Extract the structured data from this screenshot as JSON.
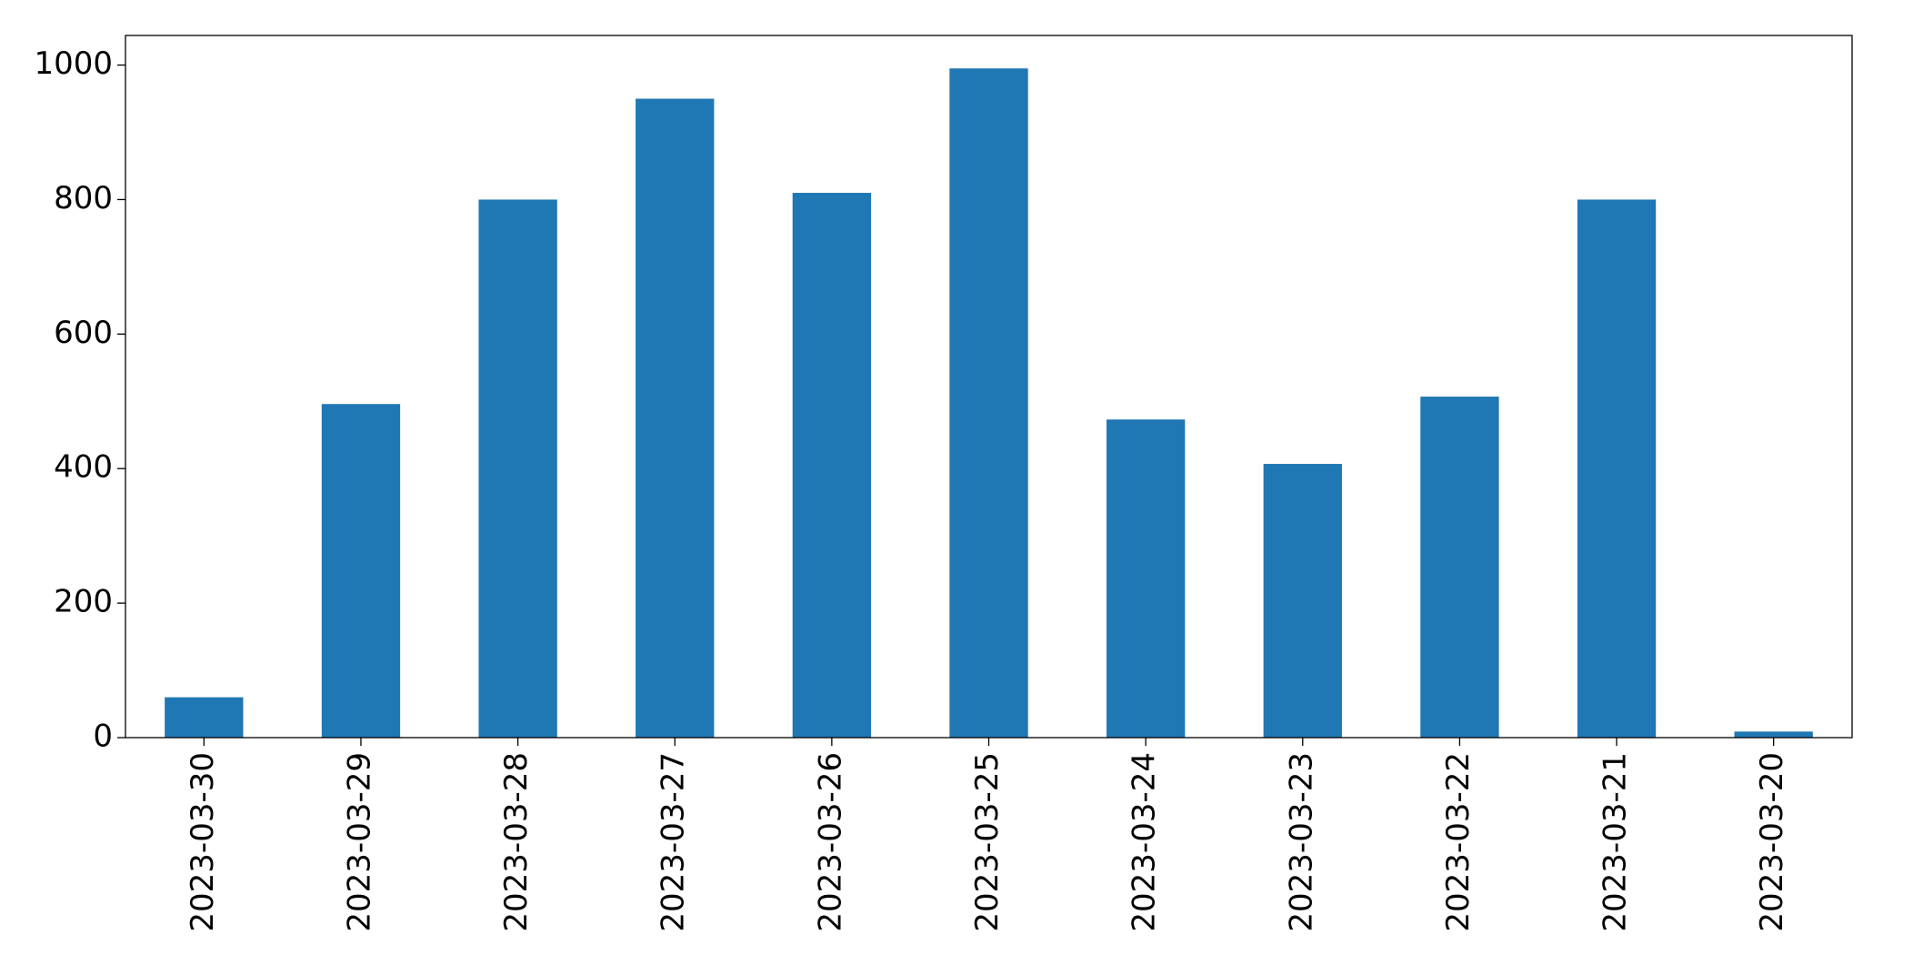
{
  "chart_data": {
    "type": "bar",
    "categories": [
      "2023-03-30",
      "2023-03-29",
      "2023-03-28",
      "2023-03-27",
      "2023-03-26",
      "2023-03-25",
      "2023-03-24",
      "2023-03-23",
      "2023-03-22",
      "2023-03-21",
      "2023-03-20"
    ],
    "values": [
      60,
      496,
      800,
      950,
      810,
      995,
      473,
      407,
      507,
      800,
      9
    ],
    "color": "#1f77b4",
    "ylim": [
      0,
      1044
    ],
    "yticks": [
      0,
      200,
      400,
      600,
      800,
      1000
    ],
    "grid": false
  }
}
